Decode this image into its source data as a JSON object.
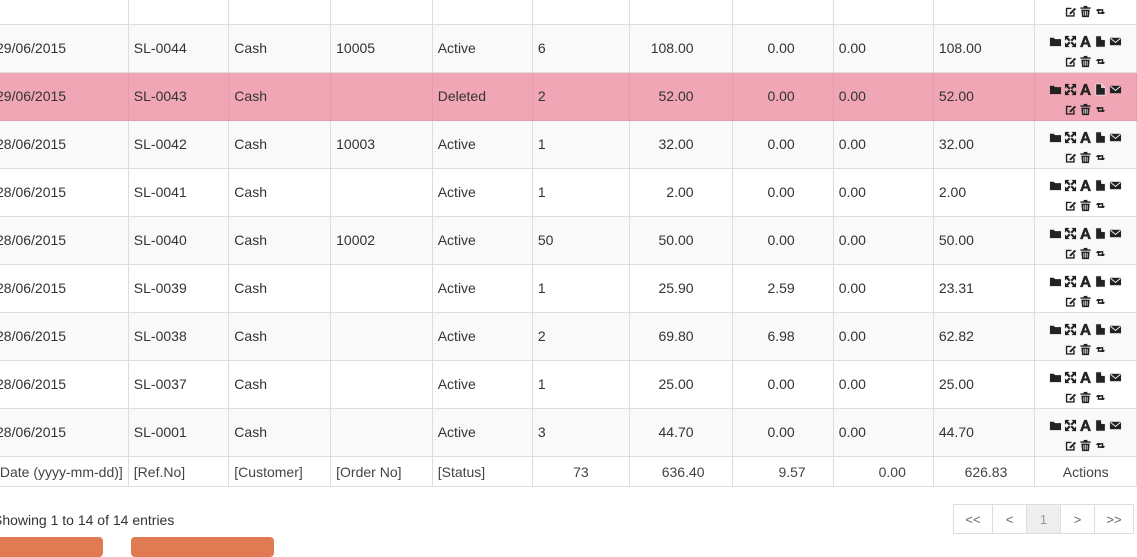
{
  "rows": [
    {
      "date": "",
      "ref": "",
      "customer": "",
      "order": "",
      "status": "",
      "qty": "",
      "total": "",
      "disc": "",
      "tax": "",
      "net": "",
      "partial": true
    },
    {
      "date": "29/06/2015",
      "ref": "SL-0044",
      "customer": "Cash",
      "order": "10005",
      "status": "Active",
      "qty": "6",
      "total": "108.00",
      "disc": "0.00",
      "tax": "0.00",
      "net": "108.00"
    },
    {
      "date": "29/06/2015",
      "ref": "SL-0043",
      "customer": "Cash",
      "order": "",
      "status": "Deleted",
      "qty": "2",
      "total": "52.00",
      "disc": "0.00",
      "tax": "0.00",
      "net": "52.00",
      "deleted": true
    },
    {
      "date": "28/06/2015",
      "ref": "SL-0042",
      "customer": "Cash",
      "order": "10003",
      "status": "Active",
      "qty": "1",
      "total": "32.00",
      "disc": "0.00",
      "tax": "0.00",
      "net": "32.00"
    },
    {
      "date": "28/06/2015",
      "ref": "SL-0041",
      "customer": "Cash",
      "order": "",
      "status": "Active",
      "qty": "1",
      "total": "2.00",
      "disc": "0.00",
      "tax": "0.00",
      "net": "2.00"
    },
    {
      "date": "28/06/2015",
      "ref": "SL-0040",
      "customer": "Cash",
      "order": "10002",
      "status": "Active",
      "qty": "50",
      "total": "50.00",
      "disc": "0.00",
      "tax": "0.00",
      "net": "50.00"
    },
    {
      "date": "28/06/2015",
      "ref": "SL-0039",
      "customer": "Cash",
      "order": "",
      "status": "Active",
      "qty": "1",
      "total": "25.90",
      "disc": "2.59",
      "tax": "0.00",
      "net": "23.31"
    },
    {
      "date": "28/06/2015",
      "ref": "SL-0038",
      "customer": "Cash",
      "order": "",
      "status": "Active",
      "qty": "2",
      "total": "69.80",
      "disc": "6.98",
      "tax": "0.00",
      "net": "62.82"
    },
    {
      "date": "28/06/2015",
      "ref": "SL-0037",
      "customer": "Cash",
      "order": "",
      "status": "Active",
      "qty": "1",
      "total": "25.00",
      "disc": "0.00",
      "tax": "0.00",
      "net": "25.00"
    },
    {
      "date": "28/06/2015",
      "ref": "SL-0001",
      "customer": "Cash",
      "order": "",
      "status": "Active",
      "qty": "3",
      "total": "44.70",
      "disc": "0.00",
      "tax": "0.00",
      "net": "44.70"
    }
  ],
  "footer": {
    "date": "[Date (yyyy-mm-dd)]",
    "ref": "[Ref.No]",
    "customer": "[Customer]",
    "order": "[Order No]",
    "status": "[Status]",
    "qty": "73",
    "total": "636.40",
    "disc": "9.57",
    "tax": "0.00",
    "net": "626.83",
    "actions": "Actions"
  },
  "info": "Showing 1 to 14 of 14 entries",
  "pagination": {
    "first": "<<",
    "prev": "<",
    "page": "1",
    "next": ">",
    "last": ">>"
  },
  "action_icons": {
    "line1": [
      "folder-icon",
      "expand-icon",
      "font-icon",
      "file-icon",
      "envelope-icon"
    ],
    "line2": [
      "edit-icon",
      "trash-icon",
      "retweet-icon"
    ]
  }
}
